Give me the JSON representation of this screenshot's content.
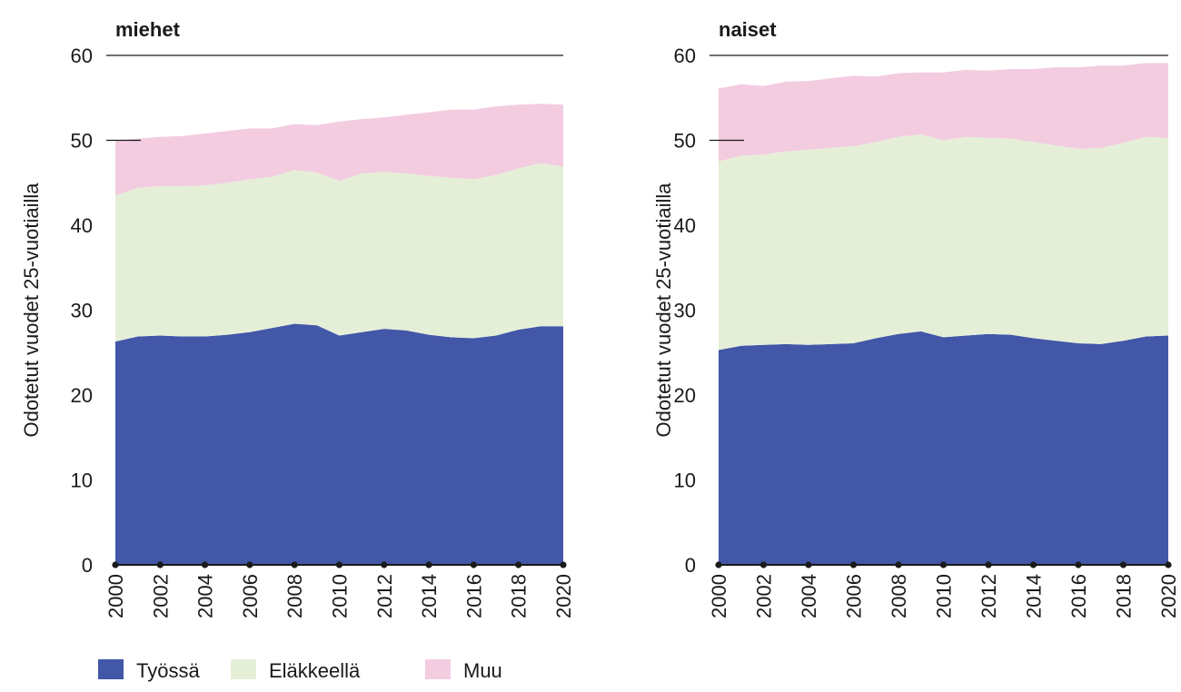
{
  "chart_data": [
    {
      "type": "area",
      "stacked": true,
      "title": "miehet",
      "ylabel": "Odotetut vuodet 25-vuotiailla",
      "xlabel": "",
      "ylim": [
        0,
        60
      ],
      "yticks": [
        0,
        10,
        20,
        30,
        40,
        50,
        60
      ],
      "xticks": [
        2000,
        2002,
        2004,
        2006,
        2008,
        2010,
        2012,
        2014,
        2016,
        2018,
        2020
      ],
      "x": [
        2000,
        2001,
        2002,
        2003,
        2004,
        2005,
        2006,
        2007,
        2008,
        2009,
        2010,
        2011,
        2012,
        2013,
        2014,
        2015,
        2016,
        2017,
        2018,
        2019,
        2020
      ],
      "grid": false,
      "series": [
        {
          "name": "Työssä",
          "color": "#4257a8",
          "values": [
            26.3,
            26.9,
            27.0,
            26.9,
            26.9,
            27.1,
            27.4,
            27.9,
            28.4,
            28.2,
            27.0,
            27.4,
            27.8,
            27.6,
            27.1,
            26.8,
            26.7,
            27.0,
            27.7,
            28.1,
            28.1
          ]
        },
        {
          "name": "Eläkkeellä",
          "color": "#e5efd8",
          "values": [
            17.2,
            17.5,
            17.6,
            17.7,
            17.8,
            17.9,
            18.0,
            17.8,
            18.1,
            18.0,
            18.2,
            18.7,
            18.5,
            18.5,
            18.7,
            18.8,
            18.7,
            18.9,
            19.0,
            19.2,
            18.8
          ]
        },
        {
          "name": "Muu",
          "color": "#f3cce0",
          "values": [
            6.4,
            5.8,
            5.8,
            5.9,
            6.1,
            6.1,
            6.0,
            5.7,
            5.4,
            5.6,
            7.0,
            6.4,
            6.4,
            6.9,
            7.5,
            8.0,
            8.2,
            8.1,
            7.5,
            7.0,
            7.3
          ]
        }
      ]
    },
    {
      "type": "area",
      "stacked": true,
      "title": "naiset",
      "ylabel": "Odotetut vuodet 25-vuotiailla",
      "xlabel": "",
      "ylim": [
        0,
        60
      ],
      "yticks": [
        0,
        10,
        20,
        30,
        40,
        50,
        60
      ],
      "xticks": [
        2000,
        2002,
        2004,
        2006,
        2008,
        2010,
        2012,
        2014,
        2016,
        2018,
        2020
      ],
      "x": [
        2000,
        2001,
        2002,
        2003,
        2004,
        2005,
        2006,
        2007,
        2008,
        2009,
        2010,
        2011,
        2012,
        2013,
        2014,
        2015,
        2016,
        2017,
        2018,
        2019,
        2020
      ],
      "grid": false,
      "series": [
        {
          "name": "Työssä",
          "color": "#4257a8",
          "values": [
            25.3,
            25.8,
            25.9,
            26.0,
            25.9,
            26.0,
            26.1,
            26.7,
            27.2,
            27.5,
            26.8,
            27.0,
            27.2,
            27.1,
            26.7,
            26.4,
            26.1,
            26.0,
            26.4,
            26.9,
            27.0
          ]
        },
        {
          "name": "Eläkkeellä",
          "color": "#e5efd8",
          "values": [
            22.2,
            22.4,
            22.4,
            22.7,
            23.0,
            23.1,
            23.2,
            23.1,
            23.2,
            23.2,
            23.2,
            23.4,
            23.1,
            23.1,
            23.1,
            23.0,
            22.9,
            23.1,
            23.3,
            23.5,
            23.3
          ]
        },
        {
          "name": "Muu",
          "color": "#f3cce0",
          "values": [
            8.6,
            8.4,
            8.1,
            8.2,
            8.1,
            8.2,
            8.3,
            7.7,
            7.5,
            7.3,
            8.0,
            7.9,
            7.9,
            8.2,
            8.6,
            9.2,
            9.6,
            9.7,
            9.1,
            8.7,
            8.8
          ]
        }
      ]
    }
  ],
  "legend": {
    "placement": "bottom-left",
    "items": [
      {
        "label": "Työssä",
        "color": "#4257a8"
      },
      {
        "label": "Eläkkeellä",
        "color": "#e5efd8"
      },
      {
        "label": "Muu",
        "color": "#f3cce0"
      }
    ]
  }
}
